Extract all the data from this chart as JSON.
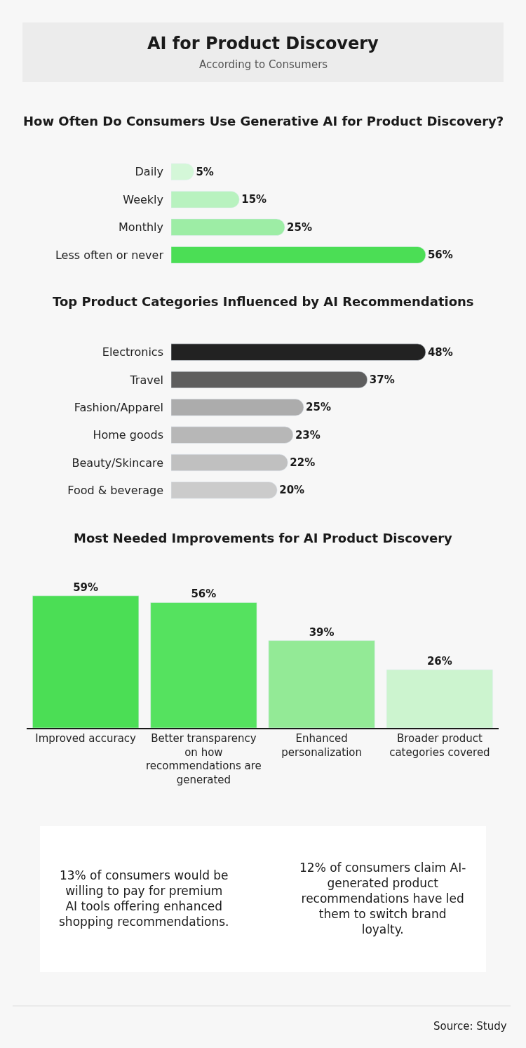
{
  "chart_data": [
    {
      "type": "other",
      "title": "AI for Product Discovery",
      "subtitle": "According to Consumers"
    },
    {
      "type": "bar",
      "orientation": "horizontal",
      "title": "How Often Do Consumers Use Generative AI for Product Discovery?",
      "categories": [
        "Daily",
        "Weekly",
        "Monthly",
        "Less often or never"
      ],
      "values": [
        5,
        15,
        25,
        56
      ],
      "value_labels": [
        "5%",
        "15%",
        "25%",
        "56%"
      ],
      "colors": [
        "#d4f7d8",
        "#b8f2bf",
        "#9deda5",
        "#4bde55"
      ],
      "tick_labels": "y"
    },
    {
      "type": "bar",
      "orientation": "horizontal",
      "title": "Top Product Categories Influenced by AI Recommendations",
      "categories": [
        "Electronics",
        "Travel",
        "Fashion/Apparel",
        "Home goods",
        "Beauty/Skincare",
        "Food & beverage"
      ],
      "values": [
        48,
        37,
        25,
        23,
        22,
        20
      ],
      "value_labels": [
        "48%",
        "37%",
        "25%",
        "23%",
        "22%",
        "20%"
      ],
      "colors": [
        "#222222",
        "#5e5e5e",
        "#acacac",
        "#b7b7b7",
        "#c0c0c0",
        "#cbcbcb"
      ],
      "tick_labels": "y"
    },
    {
      "type": "bar",
      "title": "Most Needed Improvements for AI Product Discovery",
      "categories": [
        "Improved accuracy",
        "Better transparency on how recommendations are generated",
        "Enhanced personalization",
        "Broader product categories covered"
      ],
      "values": [
        59,
        56,
        39,
        26
      ],
      "value_labels": [
        "59%",
        "56%",
        "39%",
        "26%"
      ],
      "colors": [
        "#4bde55",
        "#55e25f",
        "#93ea96",
        "#ccf4cf"
      ],
      "tick_labels": "x"
    },
    {
      "type": "other",
      "annotations": [
        "13% of consumers would be willing to pay for premium AI tools offering enhanced shopping recommendations.",
        "12% of consumers claim AI-generated product recommendations have led them to switch brand loyalty.",
        "Source: Study"
      ]
    }
  ]
}
